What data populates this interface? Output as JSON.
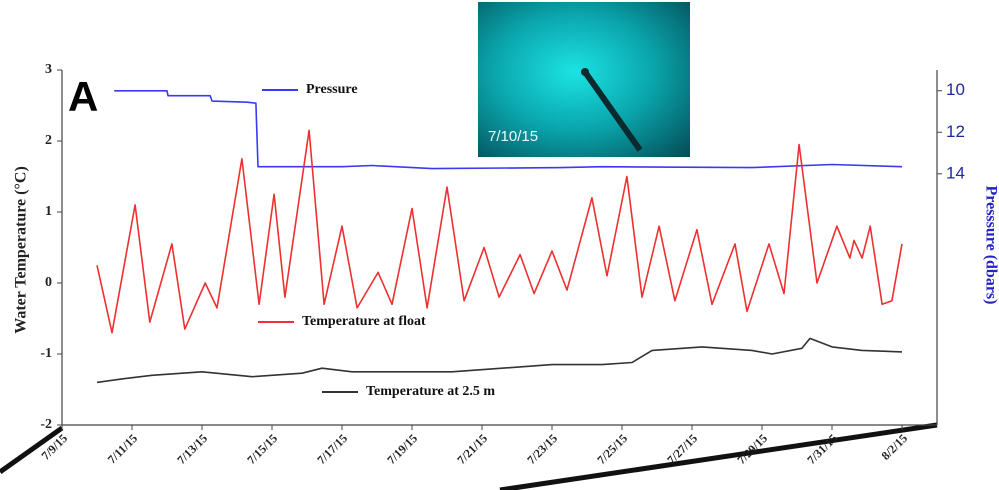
{
  "chart_data": {
    "type": "line",
    "panel_label": "A",
    "inset_label": "7/10/15",
    "ylabel": "Water Temperature (°C)",
    "y2label": "Presssure (dbars)",
    "xlim": [
      9,
      34
    ],
    "xticks": [
      {
        "value": 9,
        "label": "7/9/15"
      },
      {
        "value": 11,
        "label": "7/11/15"
      },
      {
        "value": 13,
        "label": "7/13/15"
      },
      {
        "value": 15,
        "label": "7/15/15"
      },
      {
        "value": 17,
        "label": "7/17/15"
      },
      {
        "value": 19,
        "label": "7/19/15"
      },
      {
        "value": 21,
        "label": "7/21/15"
      },
      {
        "value": 23,
        "label": "7/23/15"
      },
      {
        "value": 25,
        "label": "7/25/15"
      },
      {
        "value": 27,
        "label": "7/27/15"
      },
      {
        "value": 29,
        "label": "7/29/15"
      },
      {
        "value": 31,
        "label": "7/31/15"
      },
      {
        "value": 33,
        "label": "8/2/15"
      }
    ],
    "ylim": [
      -2,
      3
    ],
    "yticks": [
      -2,
      -1,
      0,
      1,
      2,
      3
    ],
    "y2lim": [
      9,
      26.1
    ],
    "y2ticks": [
      10,
      12,
      14
    ],
    "y2_inverted": true,
    "series": [
      {
        "name": "Pressure",
        "color": "#3a3af0",
        "axis": "y2",
        "x": [
          10.49,
          12.0,
          12.03,
          13.23,
          13.29,
          14.29,
          14.54,
          14.6,
          17.0,
          17.86,
          19.57,
          23.29,
          24.43,
          28.71,
          31.0,
          33.0
        ],
        "values": [
          10.0,
          10.0,
          10.24,
          10.24,
          10.5,
          10.55,
          10.6,
          13.66,
          13.66,
          13.6,
          13.75,
          13.7,
          13.66,
          13.7,
          13.55,
          13.66
        ]
      },
      {
        "name": "Temperature at float",
        "color": "#ee3030",
        "x": [
          10.0,
          10.43,
          11.09,
          11.51,
          12.14,
          12.51,
          13.09,
          13.43,
          14.14,
          14.63,
          15.06,
          15.37,
          16.06,
          16.49,
          17.0,
          17.43,
          18.03,
          18.43,
          19.0,
          19.43,
          20.0,
          20.49,
          21.06,
          21.49,
          22.09,
          22.49,
          23.0,
          23.43,
          24.14,
          24.57,
          25.14,
          25.57,
          26.06,
          26.51,
          27.14,
          27.57,
          28.23,
          28.57,
          29.2,
          29.63,
          30.06,
          30.57,
          31.14,
          31.51,
          31.63,
          31.86,
          32.09,
          32.43,
          32.71,
          33.0
        ],
        "values": [
          0.25,
          -0.7,
          1.1,
          -0.55,
          0.55,
          -0.65,
          0.0,
          -0.35,
          1.75,
          -0.3,
          1.25,
          -0.2,
          2.15,
          -0.3,
          0.8,
          -0.35,
          0.15,
          -0.3,
          1.05,
          -0.35,
          1.35,
          -0.25,
          0.5,
          -0.2,
          0.4,
          -0.15,
          0.45,
          -0.1,
          1.2,
          0.1,
          1.5,
          -0.2,
          0.8,
          -0.25,
          0.75,
          -0.3,
          0.55,
          -0.4,
          0.55,
          -0.15,
          1.95,
          0.0,
          0.8,
          0.35,
          0.6,
          0.35,
          0.8,
          -0.3,
          -0.25,
          0.55
        ]
      },
      {
        "name": "Temperature at 2.5 m",
        "color": "#333333",
        "x": [
          10.0,
          10.71,
          11.57,
          13.0,
          14.43,
          15.86,
          16.43,
          17.29,
          18.71,
          20.14,
          21.57,
          23.0,
          24.43,
          25.29,
          25.86,
          27.29,
          28.71,
          29.29,
          30.14,
          30.37,
          31.0,
          31.86,
          33.0
        ],
        "values": [
          -1.4,
          -1.35,
          -1.3,
          -1.25,
          -1.32,
          -1.27,
          -1.2,
          -1.25,
          -1.25,
          -1.25,
          -1.2,
          -1.15,
          -1.15,
          -1.12,
          -0.95,
          -0.9,
          -0.95,
          -1.0,
          -0.92,
          -0.78,
          -0.9,
          -0.95,
          -0.97
        ]
      }
    ]
  }
}
